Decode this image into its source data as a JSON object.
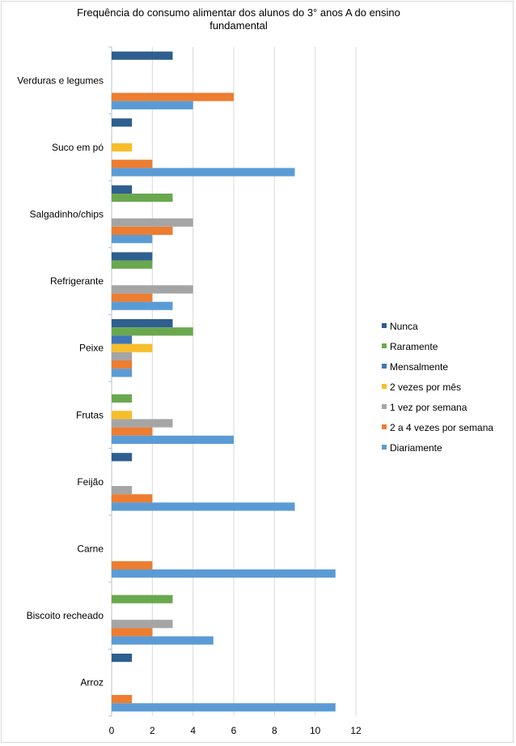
{
  "chart_data": {
    "type": "bar",
    "orientation": "horizontal",
    "title": "Frequência do consumo alimentar dos alunos do 3° anos A do ensino fundamental",
    "xlim": [
      0,
      12
    ],
    "x_ticks": [
      "0",
      "2",
      "4",
      "6",
      "8",
      "10",
      "12"
    ],
    "grid": true,
    "legend_position": "right",
    "categories": [
      "Verduras e legumes",
      "Suco em pó",
      "Salgadinho/chips",
      "Refrigerante",
      "Peixe",
      "Frutas",
      "Feijão",
      "Carne",
      "Biscoito recheado",
      "Arroz"
    ],
    "series": [
      {
        "name": "Nunca",
        "color": "#2e5f8f",
        "values": [
          3,
          1,
          1,
          2,
          3,
          0,
          1,
          0,
          0,
          1
        ]
      },
      {
        "name": "Raramente",
        "color": "#6aa84f",
        "values": [
          0,
          0,
          3,
          2,
          4,
          1,
          0,
          0,
          3,
          0
        ]
      },
      {
        "name": "Mensalmente",
        "color": "#3f76b8",
        "values": [
          0,
          0,
          0,
          0,
          1,
          0,
          0,
          0,
          0,
          0
        ]
      },
      {
        "name": "2 vezes por mês",
        "color": "#f6be2b",
        "values": [
          0,
          1,
          0,
          0,
          2,
          1,
          0,
          0,
          0,
          0
        ]
      },
      {
        "name": "1 vez por semana",
        "color": "#a5a5a5",
        "values": [
          0,
          0,
          4,
          4,
          1,
          3,
          1,
          0,
          3,
          0
        ]
      },
      {
        "name": "2 a 4 vezes por semana",
        "color": "#ed7d31",
        "values": [
          6,
          2,
          3,
          2,
          1,
          2,
          2,
          2,
          2,
          1
        ]
      },
      {
        "name": "Diariamente",
        "color": "#5b9bd5",
        "values": [
          4,
          9,
          2,
          3,
          1,
          6,
          9,
          11,
          5,
          11
        ]
      }
    ]
  }
}
